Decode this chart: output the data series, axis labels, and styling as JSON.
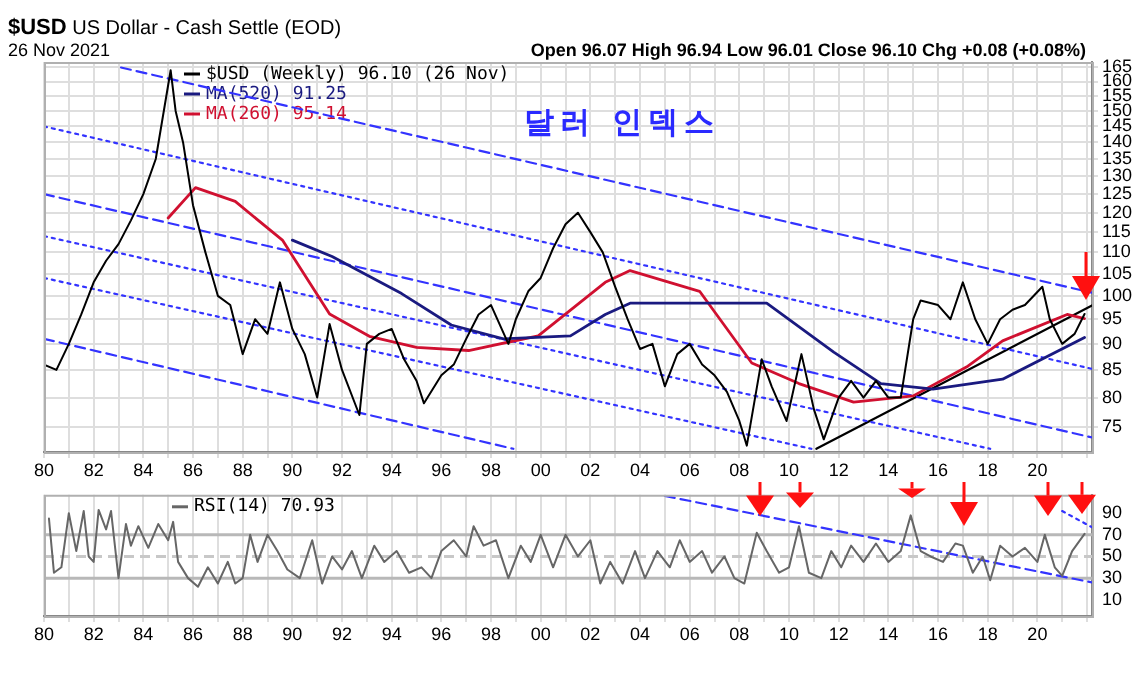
{
  "chart_data": [
    {
      "type": "line",
      "title": "$USD US Dollar - Cash Settle (EOD)",
      "subtitle": "26 Nov 2021",
      "annotations": [
        "Open 96.07 High 96.94 Low 96.01 Close 96.10 Chg +0.08 (+0.08%)",
        "달러 인덱스"
      ],
      "log": "y",
      "grid": true,
      "legend": "top left",
      "xlim": [
        1980,
        2022.2
      ],
      "xticks": [
        {
          "value": 1980,
          "label": "80"
        },
        {
          "value": 1981,
          "label": null
        },
        {
          "value": 1982,
          "label": "82"
        },
        {
          "value": 1983,
          "label": null
        },
        {
          "value": 1984,
          "label": "84"
        },
        {
          "value": 1985,
          "label": null
        },
        {
          "value": 1986,
          "label": "86"
        },
        {
          "value": 1987,
          "label": null
        },
        {
          "value": 1988,
          "label": "88"
        },
        {
          "value": 1989,
          "label": null
        },
        {
          "value": 1990,
          "label": "90"
        },
        {
          "value": 1991,
          "label": null
        },
        {
          "value": 1992,
          "label": "92"
        },
        {
          "value": 1993,
          "label": null
        },
        {
          "value": 1994,
          "label": "94"
        },
        {
          "value": 1995,
          "label": null
        },
        {
          "value": 1996,
          "label": "96"
        },
        {
          "value": 1997,
          "label": null
        },
        {
          "value": 1998,
          "label": "98"
        },
        {
          "value": 1999,
          "label": null
        },
        {
          "value": 2000,
          "label": "00"
        },
        {
          "value": 2001,
          "label": null
        },
        {
          "value": 2002,
          "label": "02"
        },
        {
          "value": 2003,
          "label": null
        },
        {
          "value": 2004,
          "label": "04"
        },
        {
          "value": 2005,
          "label": null
        },
        {
          "value": 2006,
          "label": "06"
        },
        {
          "value": 2007,
          "label": null
        },
        {
          "value": 2008,
          "label": "08"
        },
        {
          "value": 2009,
          "label": null
        },
        {
          "value": 2010,
          "label": "10"
        },
        {
          "value": 2011,
          "label": null
        },
        {
          "value": 2012,
          "label": "12"
        },
        {
          "value": 2013,
          "label": null
        },
        {
          "value": 2014,
          "label": "14"
        },
        {
          "value": 2015,
          "label": null
        },
        {
          "value": 2016,
          "label": "16"
        },
        {
          "value": 2017,
          "label": null
        },
        {
          "value": 2018,
          "label": "18"
        },
        {
          "value": 2019,
          "label": null
        },
        {
          "value": 2020,
          "label": "20"
        },
        {
          "value": 2021,
          "label": null
        },
        {
          "value": 2022,
          "label": null
        }
      ],
      "ylim": [
        71,
        167
      ],
      "yticks": [
        75,
        80,
        85,
        90,
        95,
        100,
        105,
        110,
        115,
        120,
        125,
        130,
        135,
        140,
        145,
        150,
        155,
        160,
        165
      ],
      "series": [
        {
          "name": "$USD (Weekly) 96.10 (26 Nov)",
          "color": "#000000",
          "x": [
            1980,
            1980.5,
            1981,
            1981.5,
            1982,
            1982.5,
            1983,
            1983.5,
            1984,
            1984.5,
            1985.1,
            1985.3,
            1985.6,
            1986,
            1986.5,
            1987,
            1987.5,
            1988,
            1988.5,
            1989,
            1989.5,
            1990,
            1990.5,
            1991,
            1991.5,
            1992,
            1992.7,
            1993,
            1993.5,
            1994,
            1994.5,
            1995,
            1995.3,
            1996,
            1996.5,
            1997,
            1997.5,
            1998,
            1998.7,
            1999,
            1999.5,
            2000,
            2000.5,
            2001,
            2001.5,
            2002,
            2002.5,
            2003,
            2003.5,
            2004,
            2004.5,
            2005,
            2005.5,
            2006,
            2006.5,
            2007,
            2007.5,
            2008,
            2008.3,
            2008.9,
            2009.3,
            2009.9,
            2010.5,
            2011,
            2011.4,
            2012,
            2012.5,
            2013,
            2013.5,
            2014,
            2014.5,
            2015,
            2015.3,
            2016,
            2016.5,
            2017,
            2017.5,
            2018,
            2018.5,
            2019,
            2019.5,
            2020.2,
            2020.5,
            2021,
            2021.5,
            2021.9
          ],
          "values": [
            86,
            85,
            90,
            96,
            103,
            108,
            112,
            118,
            125,
            135,
            164,
            150,
            140,
            122,
            110,
            100,
            98,
            88,
            95,
            92,
            103,
            93,
            88,
            80,
            94,
            85,
            77,
            90,
            92,
            93,
            87,
            83,
            79,
            84,
            86,
            91,
            96,
            98,
            90,
            95,
            101,
            104,
            111,
            117,
            120,
            115,
            110,
            102,
            95,
            89,
            90,
            82,
            88,
            90,
            86,
            84,
            81,
            76,
            72,
            87,
            82,
            76,
            88,
            78,
            73,
            80,
            83,
            80,
            83,
            80,
            80,
            95,
            99,
            98,
            95,
            103,
            95,
            90,
            95,
            97,
            98,
            102,
            95,
            90,
            92,
            96.1
          ]
        },
        {
          "name": "MA(520) 91.25",
          "color": "#1a1a80",
          "x": [
            1990,
            1991.6,
            1994.4,
            1996.4,
            1998.5,
            2001.2,
            2002.6,
            2003.6,
            2009.1,
            2011.8,
            2013.7,
            2015.8,
            2018.6,
            2021.9
          ],
          "values": [
            113,
            109,
            100.5,
            93.8,
            91,
            91.6,
            96,
            98.4,
            98.4,
            88.4,
            82.5,
            81.5,
            83.3,
            91.25
          ]
        },
        {
          "name": "MA(260) 95.14",
          "color": "#d01030",
          "x": [
            1985,
            1986.1,
            1987.7,
            1989.6,
            1991.5,
            1993.1,
            1995,
            1997.1,
            1999.9,
            2002.6,
            2003.6,
            2006.4,
            2008.5,
            2010.4,
            2012.6,
            2015,
            2017.2,
            2018.6,
            2021.2,
            2021.9
          ],
          "values": [
            118.6,
            126.8,
            123,
            113,
            96.1,
            91.5,
            89.3,
            88.7,
            91.6,
            103,
            105.7,
            101,
            86.3,
            82.5,
            79.2,
            80.3,
            85.7,
            90.6,
            96,
            95.14
          ]
        },
        {
          "color": "#3333ff",
          "line_style": "dashed",
          "x": [
            1983.1,
            2022.2
          ],
          "values": [
            165,
            100.7
          ]
        },
        {
          "color": "#3333ff",
          "line_style": "dotted",
          "x": [
            1980,
            2022.2
          ],
          "values": [
            145,
            85.2
          ]
        },
        {
          "color": "#3333ff",
          "line_style": "dashed",
          "x": [
            1980,
            2022.2
          ],
          "values": [
            125,
            73.3
          ]
        },
        {
          "color": "#3333ff",
          "line_style": "dotted",
          "x": [
            1980,
            2018.1
          ],
          "values": [
            114,
            71.5
          ]
        },
        {
          "color": "#3333ff",
          "line_style": "dotted",
          "x": [
            1980,
            2010.9
          ],
          "values": [
            104,
            71.5
          ]
        },
        {
          "color": "#3333ff",
          "line_style": "dashed",
          "x": [
            1980,
            1998.9
          ],
          "values": [
            91,
            71.5
          ]
        },
        {
          "color": "#000000",
          "x": [
            2011.1,
            2022.2
          ],
          "values": [
            71.5,
            97.9
          ]
        }
      ]
    },
    {
      "type": "line",
      "grid": "x",
      "legend": "top left",
      "xlim": [
        1980,
        2022.2
      ],
      "xticks": [
        {
          "value": 1980,
          "label": "80"
        },
        {
          "value": 1981,
          "label": null
        },
        {
          "value": 1982,
          "label": "82"
        },
        {
          "value": 1983,
          "label": null
        },
        {
          "value": 1984,
          "label": "84"
        },
        {
          "value": 1985,
          "label": null
        },
        {
          "value": 1986,
          "label": "86"
        },
        {
          "value": 1987,
          "label": null
        },
        {
          "value": 1988,
          "label": "88"
        },
        {
          "value": 1989,
          "label": null
        },
        {
          "value": 1990,
          "label": "90"
        },
        {
          "value": 1991,
          "label": null
        },
        {
          "value": 1992,
          "label": "92"
        },
        {
          "value": 1993,
          "label": null
        },
        {
          "value": 1994,
          "label": "94"
        },
        {
          "value": 1995,
          "label": null
        },
        {
          "value": 1996,
          "label": "96"
        },
        {
          "value": 1997,
          "label": null
        },
        {
          "value": 1998,
          "label": "98"
        },
        {
          "value": 1999,
          "label": null
        },
        {
          "value": 2000,
          "label": "00"
        },
        {
          "value": 2001,
          "label": null
        },
        {
          "value": 2002,
          "label": "02"
        },
        {
          "value": 2003,
          "label": null
        },
        {
          "value": 2004,
          "label": "04"
        },
        {
          "value": 2005,
          "label": null
        },
        {
          "value": 2006,
          "label": "06"
        },
        {
          "value": 2007,
          "label": null
        },
        {
          "value": 2008,
          "label": "08"
        },
        {
          "value": 2009,
          "label": null
        },
        {
          "value": 2010,
          "label": "10"
        },
        {
          "value": 2011,
          "label": null
        },
        {
          "value": 2012,
          "label": "12"
        },
        {
          "value": 2013,
          "label": null
        },
        {
          "value": 2014,
          "label": "14"
        },
        {
          "value": 2015,
          "label": null
        },
        {
          "value": 2016,
          "label": "16"
        },
        {
          "value": 2017,
          "label": null
        },
        {
          "value": 2018,
          "label": "18"
        },
        {
          "value": 2019,
          "label": null
        },
        {
          "value": 2020,
          "label": "20"
        },
        {
          "value": 2021,
          "label": null
        },
        {
          "value": 2022,
          "label": null
        }
      ],
      "ylim": [
        -5,
        107
      ],
      "yticks": [
        10,
        30,
        50,
        70,
        90
      ],
      "ref_lines": [
        {
          "axis": "y",
          "value": 70,
          "color": "#b8b8b8"
        },
        {
          "axis": "y",
          "value": 30,
          "color": "#b8b8b8"
        },
        {
          "axis": "y",
          "value": 50,
          "color": "#c8c8c8",
          "line_style": "dashed"
        }
      ],
      "series": [
        {
          "name": "RSI(14) 70.93",
          "color": "#666666",
          "x": [
            1980.2,
            1980.4,
            1980.7,
            1981,
            1981.3,
            1981.6,
            1981.8,
            1982,
            1982.2,
            1982.5,
            1982.7,
            1983,
            1983.3,
            1983.5,
            1983.8,
            1984.2,
            1984.6,
            1985,
            1985.2,
            1985.4,
            1985.8,
            1986.2,
            1986.6,
            1987,
            1987.4,
            1987.7,
            1988,
            1988.3,
            1988.6,
            1989,
            1989.4,
            1989.8,
            1990.3,
            1990.8,
            1991.2,
            1991.6,
            1992,
            1992.4,
            1992.8,
            1993.3,
            1993.7,
            1994.2,
            1994.7,
            1995.2,
            1995.6,
            1996,
            1996.5,
            1997,
            1997.3,
            1997.7,
            1998.2,
            1998.7,
            1999.2,
            1999.6,
            2000,
            2000.5,
            2001,
            2001.5,
            2002,
            2002.4,
            2002.8,
            2003.3,
            2003.8,
            2004.2,
            2004.7,
            2005.2,
            2005.6,
            2006,
            2006.5,
            2006.9,
            2007.4,
            2007.8,
            2008.2,
            2008.7,
            2009.1,
            2009.6,
            2010,
            2010.4,
            2010.8,
            2011.3,
            2011.7,
            2012.1,
            2012.5,
            2013,
            2013.5,
            2014,
            2014.5,
            2014.9,
            2015.3,
            2015.7,
            2016.2,
            2016.7,
            2017,
            2017.4,
            2017.8,
            2018.1,
            2018.5,
            2019,
            2019.5,
            2020,
            2020.3,
            2020.7,
            2021,
            2021.4,
            2021.9
          ],
          "values": [
            85,
            35,
            40,
            90,
            55,
            92,
            50,
            45,
            93,
            75,
            92,
            30,
            80,
            60,
            78,
            58,
            80,
            65,
            82,
            45,
            30,
            22,
            40,
            25,
            45,
            25,
            30,
            70,
            45,
            70,
            55,
            38,
            30,
            65,
            25,
            50,
            38,
            55,
            30,
            60,
            45,
            55,
            35,
            40,
            30,
            55,
            65,
            50,
            78,
            60,
            65,
            30,
            60,
            45,
            70,
            40,
            70,
            50,
            65,
            25,
            45,
            25,
            55,
            30,
            55,
            40,
            65,
            45,
            55,
            35,
            50,
            30,
            25,
            72,
            55,
            35,
            40,
            78,
            35,
            30,
            55,
            40,
            60,
            45,
            62,
            45,
            55,
            88,
            55,
            50,
            45,
            62,
            60,
            35,
            50,
            28,
            60,
            50,
            58,
            45,
            70,
            40,
            32,
            55,
            70.93
          ]
        },
        {
          "color": "#3333ff",
          "line_style": "dashed",
          "x": [
            2005,
            2022.2
          ],
          "values": [
            106,
            26
          ]
        },
        {
          "color": "#3333ff",
          "line_style": "dotted",
          "x": [
            2021,
            2022.2
          ],
          "values": [
            92,
            77
          ]
        }
      ]
    }
  ]
}
